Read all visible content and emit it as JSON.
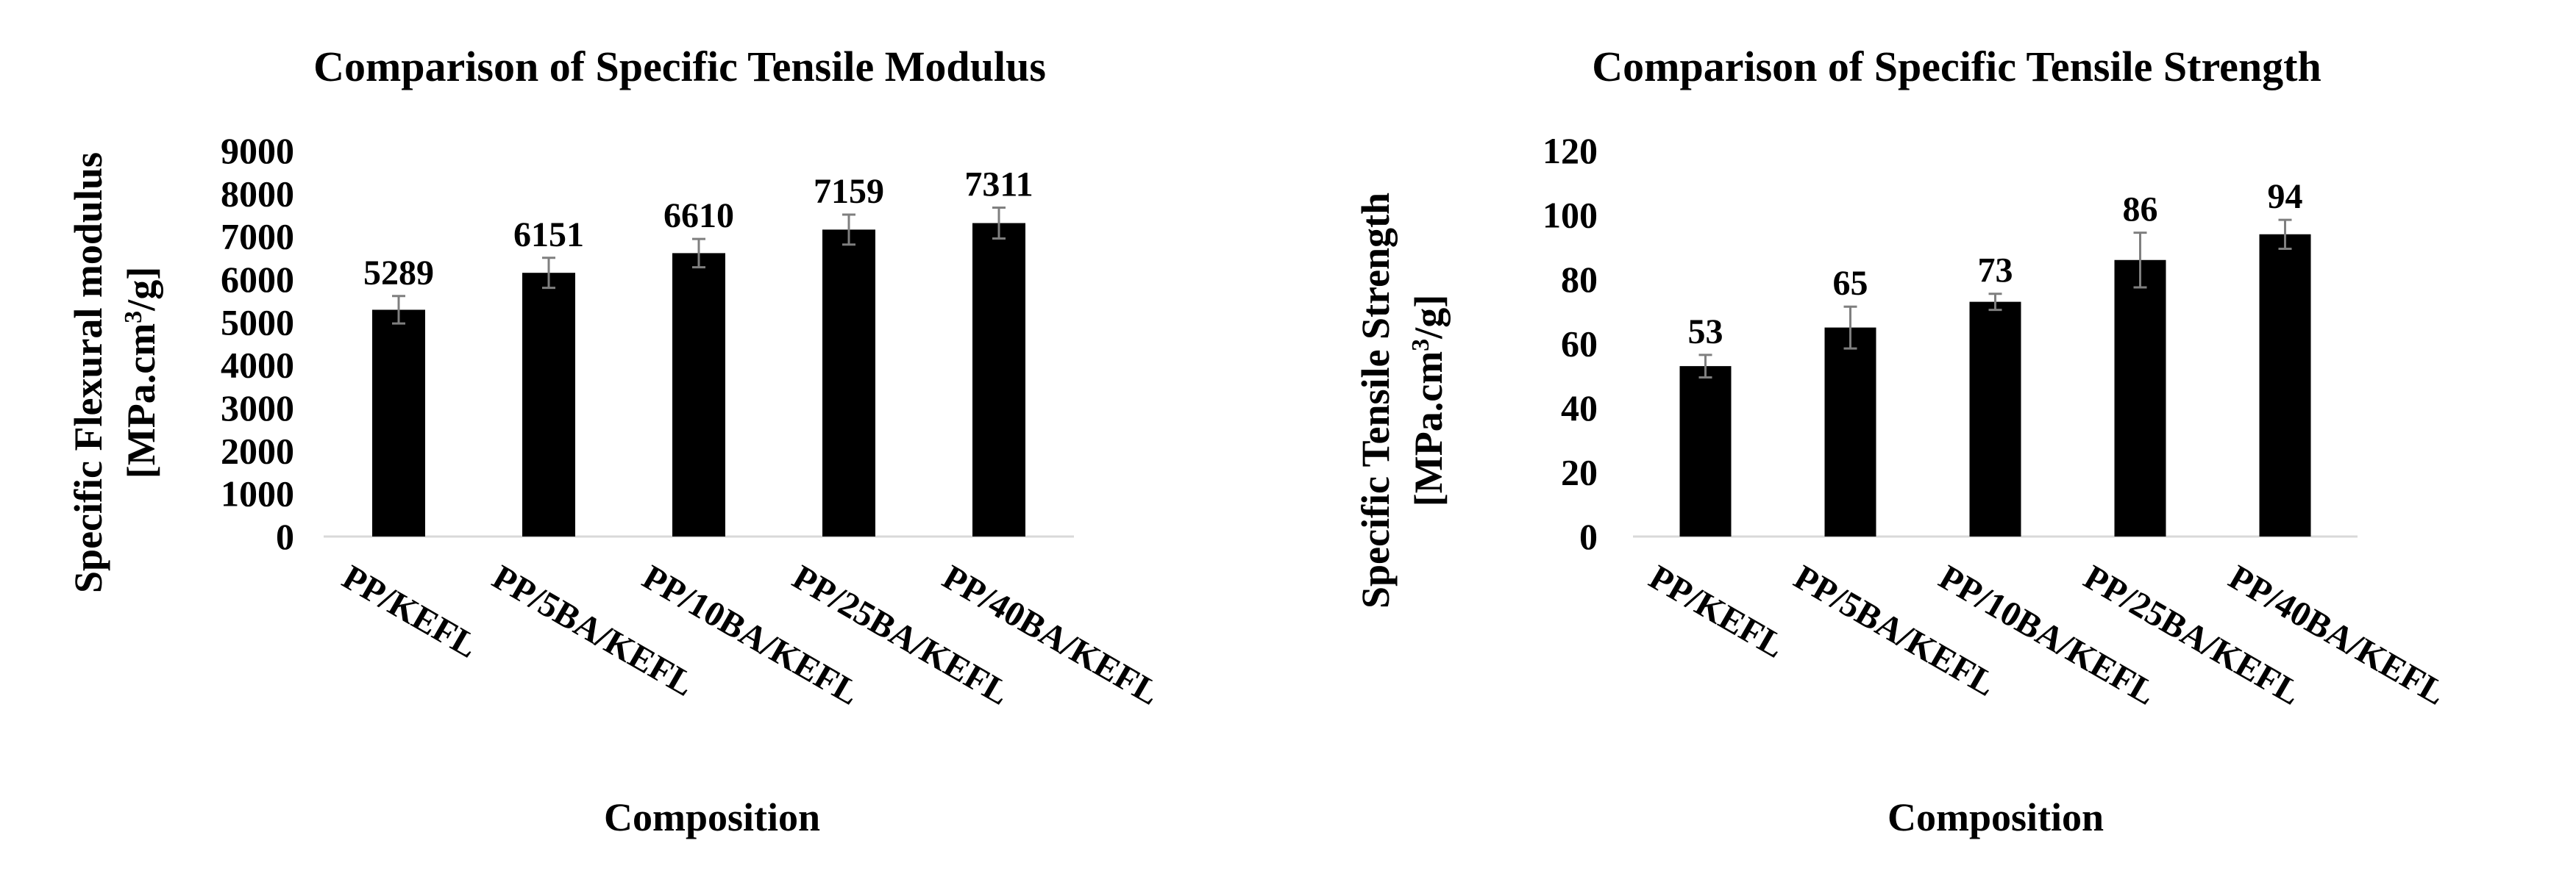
{
  "chart_data": [
    {
      "type": "bar",
      "title": "Comparison of Specific Tensile Modulus",
      "xlabel": "Composition",
      "ylabel_line1": "Specific Flexural modulus",
      "ylabel_line2_prefix": "[MPa.cm",
      "ylabel_line2_sup": "3",
      "ylabel_line2_suffix": "/g]",
      "categories": [
        "PP/KEFL",
        "PP/5BA/KEFL",
        "PP/10BA/KEFL",
        "PP/25BA/KEFL",
        "PP/40BA/KEFL"
      ],
      "values": [
        5289,
        6151,
        6610,
        7159,
        7311
      ],
      "errors": [
        320,
        350,
        330,
        350,
        360
      ],
      "data_labels": [
        "5289",
        "6151",
        "6610",
        "7159",
        "7311"
      ],
      "ylim": [
        0,
        9000
      ],
      "yticks": [
        0,
        1000,
        2000,
        3000,
        4000,
        5000,
        6000,
        7000,
        8000,
        9000
      ],
      "grid": false,
      "bar_color": "#000000"
    },
    {
      "type": "bar",
      "title": "Comparison of Specific Tensile Strength",
      "xlabel": "Composition",
      "ylabel_line1": "Specific Tensile Strength",
      "ylabel_line2_prefix": "[MPa.cm",
      "ylabel_line2_sup": "3",
      "ylabel_line2_suffix": "/g]",
      "categories": [
        "PP/KEFL",
        "PP/5BA/KEFL",
        "PP/10BA/KEFL",
        "PP/25BA/KEFL",
        "PP/40BA/KEFL"
      ],
      "values": [
        53,
        65,
        73,
        86,
        94
      ],
      "errors": [
        3.5,
        6.5,
        2.5,
        8.5,
        4.5
      ],
      "data_labels": [
        "53",
        "65",
        "73",
        "86",
        "94"
      ],
      "ylim": [
        0,
        120
      ],
      "yticks": [
        0,
        20,
        40,
        60,
        80,
        100,
        120
      ],
      "grid": false,
      "bar_color": "#000000"
    }
  ]
}
